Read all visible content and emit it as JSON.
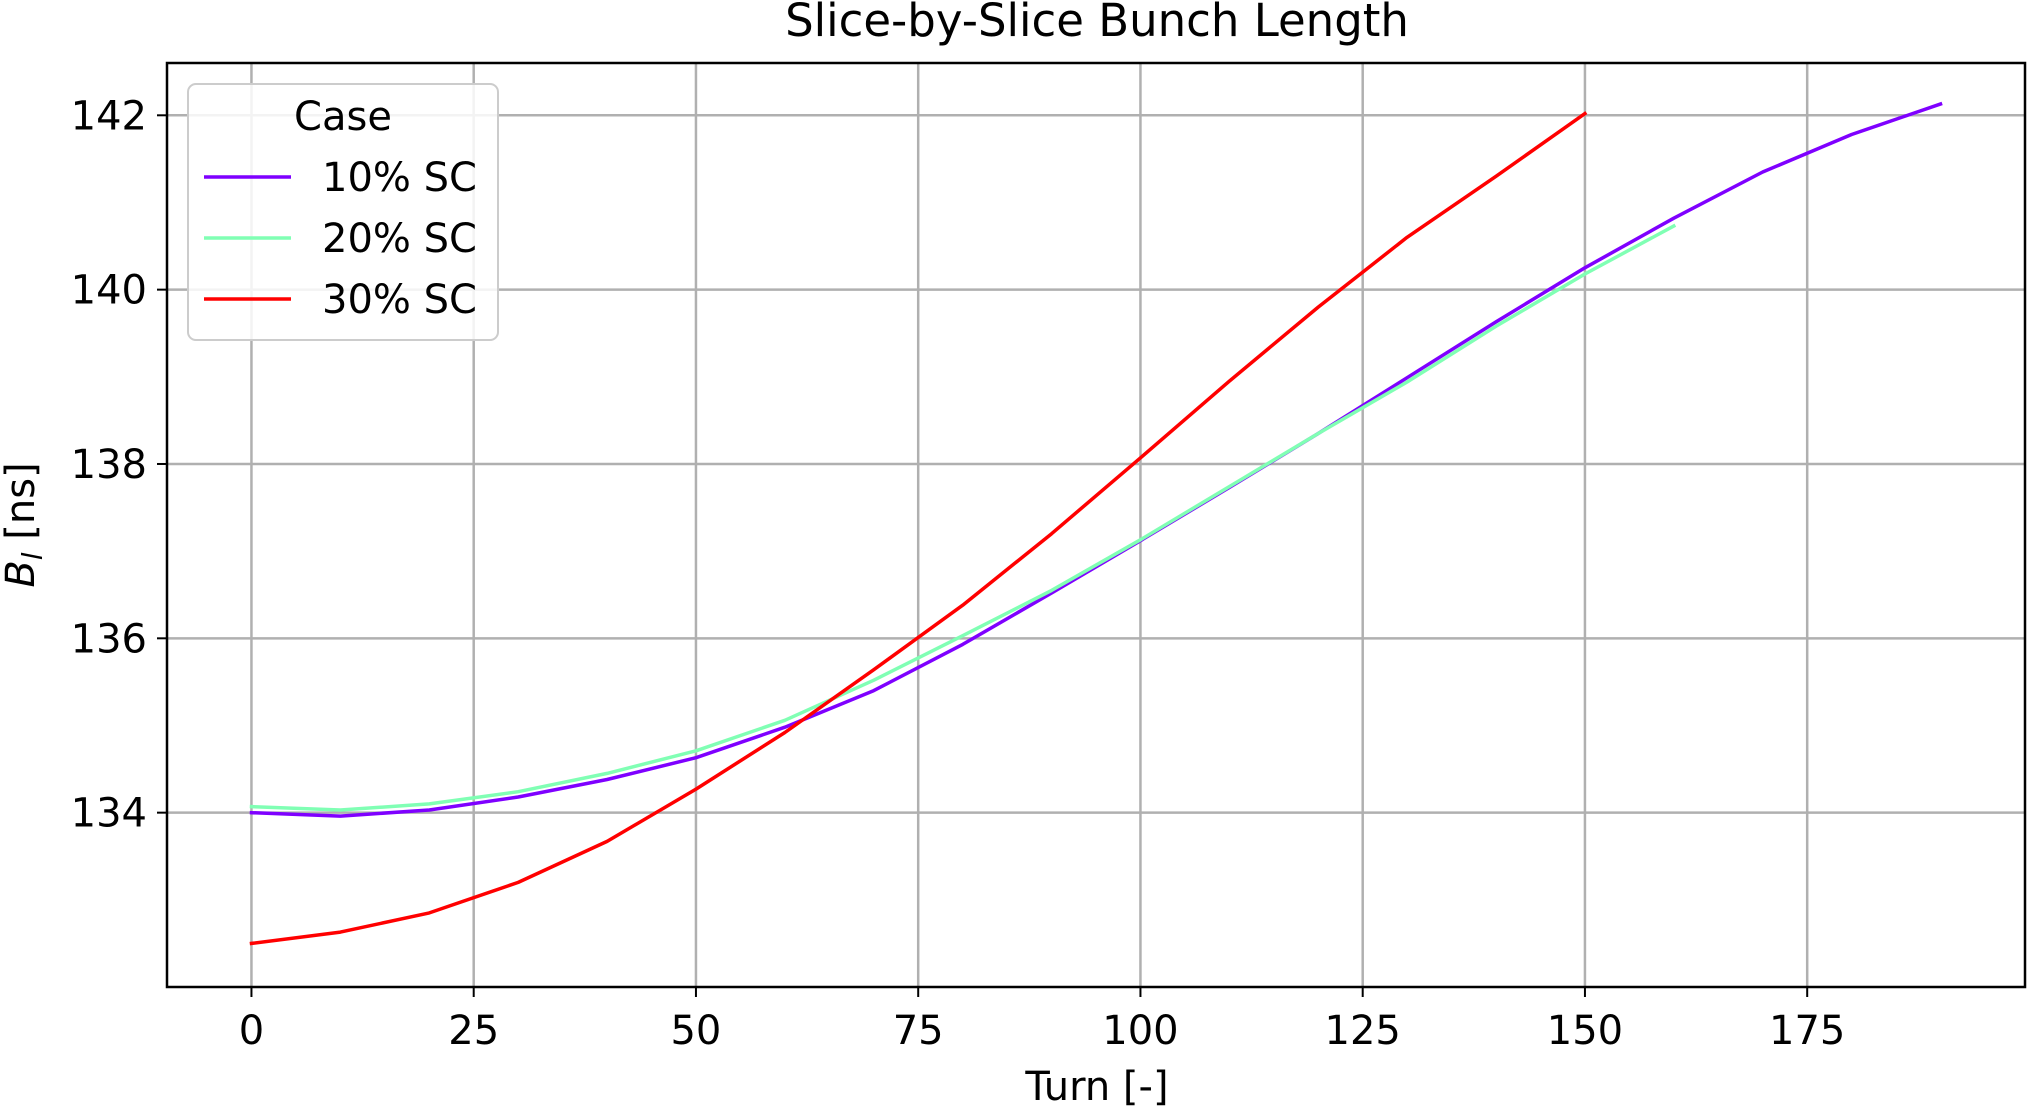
{
  "chart_data": {
    "type": "line",
    "title": "Slice-by-Slice Bunch Length",
    "xlabel": "Turn [-]",
    "ylabel_main": "B",
    "ylabel_sub": "l",
    "ylabel_unit": " [ns]",
    "xlim": [
      -9.5,
      199.5
    ],
    "ylim": [
      132.0,
      142.6
    ],
    "xticks": [
      0,
      25,
      50,
      75,
      100,
      125,
      150,
      175
    ],
    "yticks": [
      134,
      136,
      138,
      140,
      142
    ],
    "grid": true,
    "legend": {
      "title": "Case",
      "placement": "top-left"
    },
    "series": [
      {
        "name": "10% SC",
        "color": "#7f00ff",
        "x": [
          0,
          10,
          20,
          30,
          40,
          50,
          60,
          70,
          80,
          90,
          100,
          110,
          120,
          130,
          140,
          150,
          160,
          170,
          180,
          190
        ],
        "y": [
          134.0,
          133.96,
          134.03,
          134.18,
          134.38,
          134.63,
          134.98,
          135.4,
          135.93,
          136.52,
          137.12,
          137.73,
          138.35,
          138.99,
          139.63,
          140.25,
          140.82,
          141.35,
          141.78,
          142.13
        ]
      },
      {
        "name": "20% SC",
        "color": "#80ffb4",
        "x": [
          0,
          10,
          20,
          30,
          40,
          50,
          60,
          70,
          80,
          90,
          100,
          110,
          120,
          130,
          140,
          150,
          160
        ],
        "y": [
          134.07,
          134.03,
          134.1,
          134.24,
          134.45,
          134.71,
          135.06,
          135.52,
          136.03,
          136.55,
          137.13,
          137.74,
          138.35,
          138.94,
          139.58,
          140.18,
          140.73
        ]
      },
      {
        "name": "30% SC",
        "color": "#ff0000",
        "x": [
          0,
          10,
          20,
          30,
          40,
          50,
          60,
          70,
          80,
          90,
          100,
          110,
          120,
          130,
          140,
          150
        ],
        "y": [
          132.5,
          132.63,
          132.85,
          133.2,
          133.67,
          134.27,
          134.92,
          135.64,
          136.38,
          137.2,
          138.07,
          138.95,
          139.8,
          140.6,
          141.3,
          142.02
        ]
      }
    ]
  }
}
